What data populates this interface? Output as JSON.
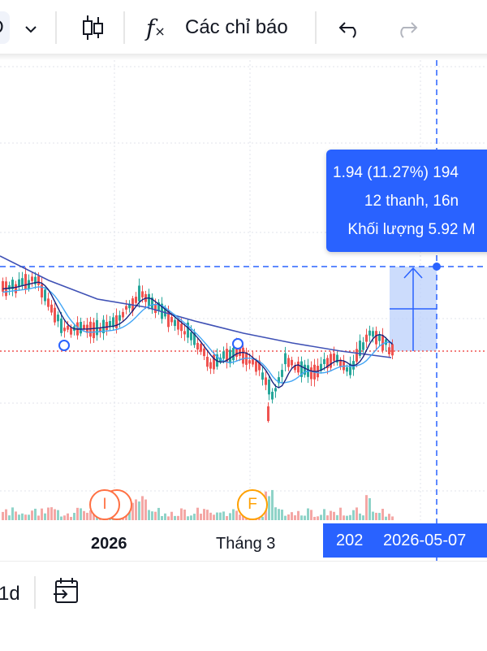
{
  "toolbar": {
    "partial_label": "D",
    "indicators_label": "Các chỉ báo",
    "icons": [
      "chevron-down-icon",
      "candlestick-icon",
      "function-icon",
      "undo-icon",
      "redo-icon"
    ]
  },
  "chart": {
    "time_axis": {
      "labels": [
        "2026",
        "Tháng 3"
      ]
    },
    "crosshair_badge": {
      "left": "202",
      "right": "2026-05-07"
    },
    "measure_tooltip": {
      "line1": "1.94 (11.27%) 194",
      "line2": "12 thanh, 16n",
      "line3": "Khối lượng 5.92 M"
    },
    "event_markers": [
      "I",
      "F"
    ],
    "colors": {
      "up": "#26a69a",
      "down": "#ef5350",
      "ma_dark": "#1a237e",
      "ma_mid": "#3f51b5",
      "ma_light": "#42a5f5",
      "accent": "#2962ff"
    }
  },
  "bottom_bar": {
    "interval_label": "1d",
    "icons": [
      "calendar-goto-icon"
    ]
  }
}
